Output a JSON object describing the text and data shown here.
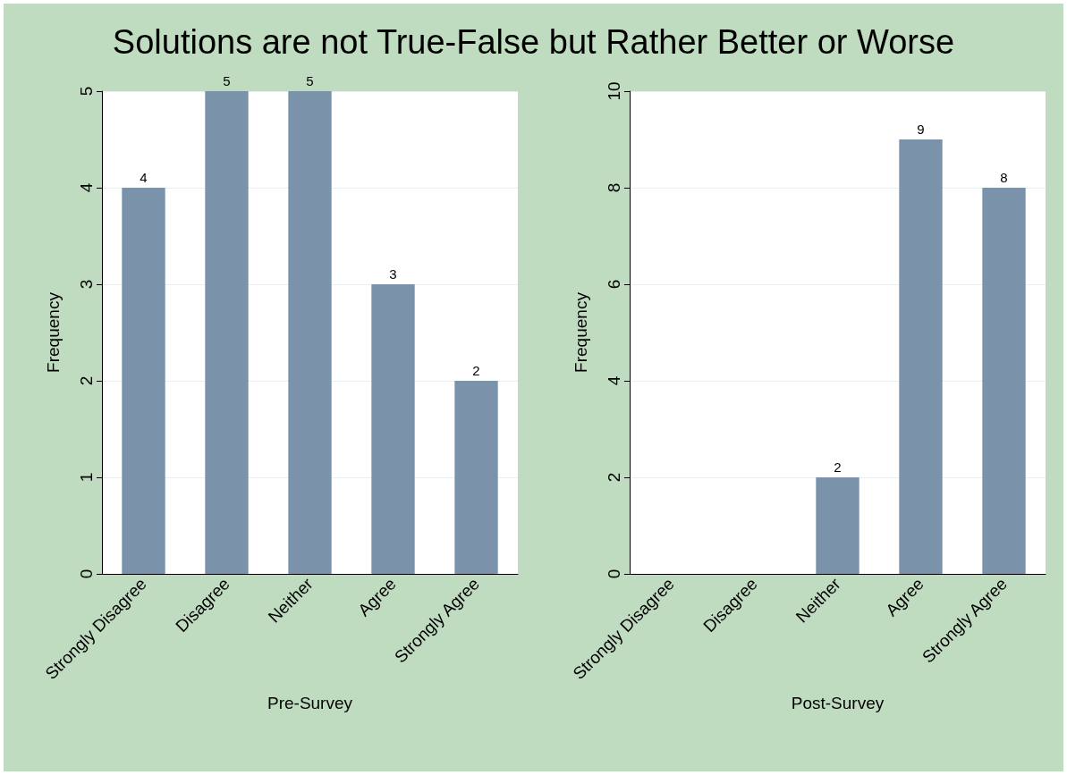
{
  "chart_data": [
    {
      "type": "bar",
      "title": "Solutions are not True-False but Rather Better or Worse",
      "categories": [
        "Strongly Disagree",
        "Disagree",
        "Neither",
        "Agree",
        "Strongly Agree"
      ],
      "values": [
        4,
        5,
        5,
        3,
        2
      ],
      "color": "#7a93aa",
      "xlabel": "Pre-Survey",
      "ylabel": "Frequency",
      "ylim": [
        0,
        5
      ],
      "yticks": [
        0,
        1,
        2,
        3,
        4,
        5
      ],
      "grid": "y",
      "data_labels": true
    },
    {
      "type": "bar",
      "categories": [
        "Strongly Disagree",
        "Disagree",
        "Neither",
        "Agree",
        "Strongly Agree"
      ],
      "values": [
        0,
        0,
        2,
        9,
        8
      ],
      "value_labels": [
        null,
        null,
        "2",
        "9",
        "8"
      ],
      "color": "#7a93aa",
      "xlabel": "Post-Survey",
      "ylabel": "Frequency",
      "ylim": [
        0,
        10
      ],
      "yticks": [
        0,
        2,
        4,
        6,
        8,
        10
      ],
      "grid": "y"
    }
  ]
}
